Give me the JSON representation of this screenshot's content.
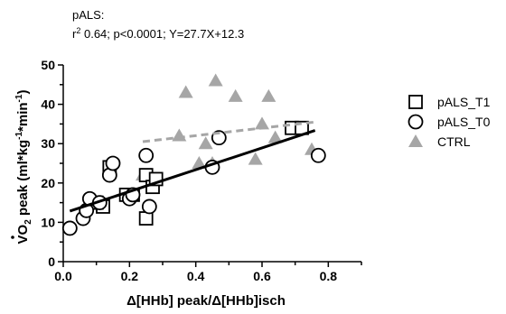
{
  "chart_data": {
    "type": "scatter",
    "annotation": {
      "line1": "pALS:",
      "line2_sup": "2",
      "line2_pre": "r",
      "line2_rest": " 0.64; p<0.0001; Y=27.7X+12.3"
    },
    "xlabel": "Δ[HHb] peak/Δ[HHb]isch",
    "ylabel": "VO2 peak (ml*kg-1*min-1)",
    "ylabel_parts": {
      "v": "V",
      "o": "O",
      "sub2": "2",
      "peak": " peak (ml*kg",
      "sup1": "-1",
      "mid": "*min",
      "sup2": "-1",
      "close": ")"
    },
    "xlim": [
      0,
      0.9
    ],
    "ylim": [
      0,
      50
    ],
    "x_ticks": [
      "0.0",
      "0.2",
      "0.4",
      "0.6",
      "0.8"
    ],
    "y_ticks": [
      "0",
      "10",
      "20",
      "30",
      "40",
      "50"
    ],
    "grid": false,
    "legend_position": "right",
    "series": [
      {
        "name": "pALS_T1",
        "marker": "square",
        "color": "#000000",
        "points": [
          [
            0.12,
            14
          ],
          [
            0.1,
            15
          ],
          [
            0.14,
            24
          ],
          [
            0.21,
            17
          ],
          [
            0.19,
            17
          ],
          [
            0.25,
            22
          ],
          [
            0.25,
            11
          ],
          [
            0.27,
            19
          ],
          [
            0.28,
            21
          ],
          [
            0.69,
            34
          ],
          [
            0.72,
            34
          ]
        ]
      },
      {
        "name": "pALS_T0",
        "marker": "circle",
        "color": "#000000",
        "points": [
          [
            0.02,
            8.5
          ],
          [
            0.06,
            11
          ],
          [
            0.07,
            13
          ],
          [
            0.08,
            16
          ],
          [
            0.11,
            15
          ],
          [
            0.14,
            22
          ],
          [
            0.15,
            25
          ],
          [
            0.2,
            16
          ],
          [
            0.21,
            17
          ],
          [
            0.25,
            27
          ],
          [
            0.26,
            14
          ],
          [
            0.45,
            24
          ],
          [
            0.47,
            31.5
          ],
          [
            0.77,
            27
          ]
        ]
      },
      {
        "name": "CTRL",
        "marker": "triangle",
        "color": "#a6a6a6",
        "points": [
          [
            0.24,
            22
          ],
          [
            0.35,
            32
          ],
          [
            0.37,
            43
          ],
          [
            0.41,
            25
          ],
          [
            0.43,
            30
          ],
          [
            0.45,
            25
          ],
          [
            0.46,
            46
          ],
          [
            0.52,
            42
          ],
          [
            0.58,
            26
          ],
          [
            0.6,
            35
          ],
          [
            0.62,
            42
          ],
          [
            0.64,
            31.5
          ],
          [
            0.75,
            28.5
          ]
        ]
      }
    ],
    "fit_lines": [
      {
        "series": "pALS",
        "color": "#000000",
        "dash": false,
        "x": [
          0.02,
          0.76
        ],
        "y": [
          12.85,
          33.35
        ]
      },
      {
        "series": "CTRL",
        "color": "#a6a6a6",
        "dash": true,
        "x": [
          0.24,
          0.76
        ],
        "y": [
          30.5,
          35.5
        ]
      }
    ]
  }
}
